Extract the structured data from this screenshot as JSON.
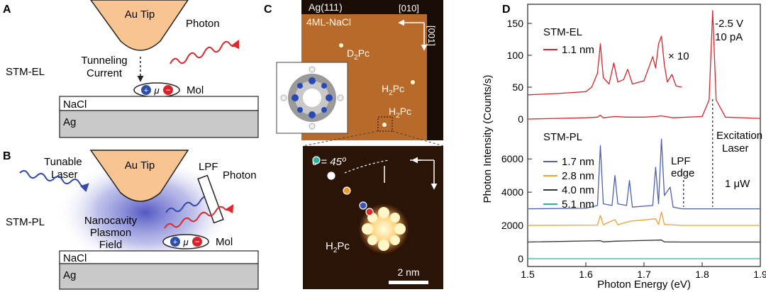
{
  "panel_labels": {
    "a": "A",
    "b": "B",
    "c": "C",
    "d": "D"
  },
  "panel_a": {
    "tip": "Au Tip",
    "photon": "Photon",
    "mode": "STM-EL",
    "current_l1": "Tunneling",
    "current_l2": "Current",
    "mu": "μ",
    "mol": "Mol",
    "substrate_top": "NaCl",
    "substrate_bottom": "Ag"
  },
  "panel_b": {
    "laser_l1": "Tunable",
    "laser_l2": "Laser",
    "tip": "Au Tip",
    "lpf": "LPF",
    "photon": "Photon",
    "mode": "STM-PL",
    "field_l1": "Nanocavity",
    "field_l2": "Plasmon",
    "field_l3": "Field",
    "mu": "μ",
    "mol": "Mol",
    "substrate_top": "NaCl",
    "substrate_bottom": "Ag"
  },
  "panel_c": {
    "ag": "Ag(111)",
    "nacl": "4ML-NaCl",
    "dir1": "[010]",
    "dir2": "[001]",
    "d2pc": "D",
    "d2pc_sub": "2",
    "d2pc_end": "Pc",
    "h2pc_a": "H",
    "h2pc_a_sub": "2",
    "h2pc_a_end": "Pc",
    "h2pc_b": "H",
    "h2pc_b_sub": "2",
    "h2pc_b_end": "Pc",
    "theta": "θ = 45º",
    "h2pc_c": "H",
    "h2pc_c_sub": "2",
    "h2pc_c_end": "Pc",
    "scale": "2 nm",
    "dot_colors": [
      "#2bb3a3",
      "#ffffff",
      "#f39a2c",
      "#3a57b8",
      "#e02a2a"
    ]
  },
  "chart_data": {
    "type": "line",
    "xlabel": "Photon Energy (eV)",
    "ylabel": "Photon Intensity (Counts/s)",
    "xlim": [
      1.5,
      1.9
    ],
    "x_ticks": [
      "1.5",
      "1.6",
      "1.7",
      "1.8",
      "1.9"
    ],
    "upper": {
      "legend_title": "STM-EL",
      "conditions_l1": "-2.5 V",
      "conditions_l2": "10 pA",
      "times_label": "× 10",
      "ylim": [
        0,
        180
      ],
      "y_ticks": [
        "0",
        "50",
        "100",
        "150"
      ],
      "series": [
        {
          "name": "1.1 nm",
          "color": "#d8232a",
          "x": [
            1.5,
            1.6,
            1.62,
            1.625,
            1.63,
            1.65,
            1.67,
            1.7,
            1.72,
            1.73,
            1.75,
            1.8,
            1.812,
            1.818,
            1.824,
            1.84,
            1.9
          ],
          "y": [
            0,
            2,
            3,
            6,
            2,
            4,
            3,
            3,
            4,
            5,
            2,
            4,
            30,
            170,
            30,
            3,
            1
          ]
        }
      ],
      "magnified": {
        "factor": 10,
        "x": [
          1.5,
          1.55,
          1.6,
          1.61,
          1.62,
          1.625,
          1.63,
          1.64,
          1.648,
          1.655,
          1.665,
          1.672,
          1.68,
          1.7,
          1.715,
          1.72,
          1.725,
          1.73,
          1.735,
          1.74,
          1.748,
          1.755,
          1.765
        ],
        "y": [
          38,
          40,
          43,
          50,
          72,
          118,
          65,
          55,
          88,
          58,
          62,
          78,
          55,
          60,
          98,
          80,
          118,
          130,
          85,
          58,
          70,
          52,
          50
        ]
      }
    },
    "lower": {
      "legend_title": "STM-PL",
      "ylim": [
        -300,
        7800
      ],
      "y_ticks": [
        "0",
        "2000",
        "4000",
        "6000"
      ],
      "lpf_label_l1": "LPF",
      "lpf_label_l2": "edge",
      "excitation_l1": "Excitation",
      "excitation_l2": "Laser",
      "power": "1 μW",
      "lpf_edge_x": 1.768,
      "excitation_x": 1.818,
      "series": [
        {
          "name": "1.7 nm",
          "color": "#4d5fb3",
          "offset": 3000,
          "x": [
            1.5,
            1.6,
            1.62,
            1.625,
            1.63,
            1.645,
            1.65,
            1.655,
            1.67,
            1.675,
            1.68,
            1.715,
            1.72,
            1.725,
            1.73,
            1.735,
            1.745,
            1.75,
            1.765,
            1.9
          ],
          "y": [
            0,
            30,
            200,
            3800,
            300,
            200,
            2000,
            300,
            200,
            1700,
            100,
            200,
            2500,
            300,
            4200,
            800,
            1300,
            100,
            0,
            0
          ]
        },
        {
          "name": "2.8 nm",
          "color": "#f0a030",
          "offset": 2000,
          "x": [
            1.5,
            1.62,
            1.625,
            1.63,
            1.65,
            1.655,
            1.675,
            1.72,
            1.725,
            1.73,
            1.735,
            1.765,
            1.9
          ],
          "y": [
            0,
            20,
            600,
            40,
            350,
            40,
            250,
            400,
            60,
            800,
            60,
            0,
            0
          ]
        },
        {
          "name": "4.0 nm",
          "color": "#333333",
          "offset": 1000,
          "x": [
            1.5,
            1.625,
            1.63,
            1.65,
            1.73,
            1.735,
            1.765,
            1.9
          ],
          "y": [
            0,
            80,
            10,
            50,
            120,
            10,
            0,
            0
          ]
        },
        {
          "name": "5.1 nm",
          "color": "#2bb3a3",
          "offset": 0,
          "x": [
            1.5,
            1.9
          ],
          "y": [
            0,
            0
          ]
        }
      ]
    }
  }
}
